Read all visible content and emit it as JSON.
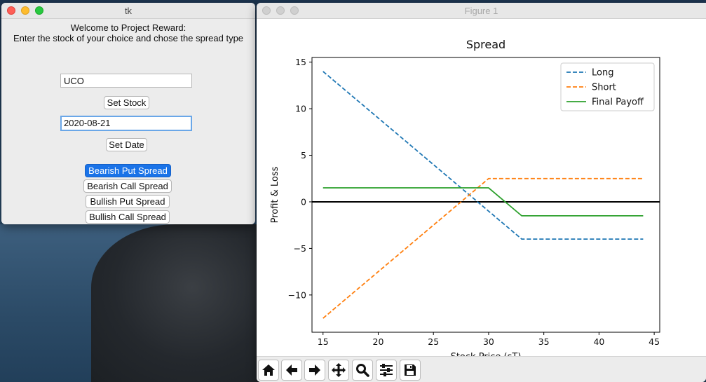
{
  "tk_window": {
    "title": "tk",
    "welcome_line1": "Welcome to Project Reward:",
    "welcome_line2": "Enter the stock of your choice and chose the spread type",
    "stock_value": "UCO",
    "set_stock_label": "Set Stock",
    "date_value": "2020-08-21",
    "set_date_label": "Set Date",
    "buttons": [
      {
        "label": "Bearish Put Spread",
        "selected": true
      },
      {
        "label": "Bearish Call Spread",
        "selected": false
      },
      {
        "label": "Bullish Put Spread",
        "selected": false
      },
      {
        "label": "Bullish Call Spread",
        "selected": false
      }
    ]
  },
  "figure_window": {
    "title": "Figure 1",
    "toolbar": [
      "home-icon",
      "back-arrow-icon",
      "forward-arrow-icon",
      "pan-icon",
      "zoom-icon",
      "configure-subplots-icon",
      "save-icon"
    ]
  },
  "chart_data": {
    "type": "line",
    "title": "Spread",
    "xlabel": "Stock Price (sT)",
    "ylabel": "Profit & Loss",
    "xlim": [
      14,
      45.5
    ],
    "ylim": [
      -14,
      15.5
    ],
    "xticks": [
      15,
      20,
      25,
      30,
      35,
      40,
      45
    ],
    "yticks": [
      15,
      10,
      5,
      0,
      -5,
      -10
    ],
    "hline_y": 0,
    "legend_position": "top-right",
    "series": [
      {
        "name": "Long",
        "style": "dashed",
        "color": "#1f77b4",
        "points": [
          [
            15,
            14
          ],
          [
            33,
            -4
          ],
          [
            44,
            -4
          ]
        ]
      },
      {
        "name": "Short",
        "style": "dashed",
        "color": "#ff7f0e",
        "points": [
          [
            15,
            -12.5
          ],
          [
            30,
            2.5
          ],
          [
            44,
            2.5
          ]
        ]
      },
      {
        "name": "Final Payoff",
        "style": "solid",
        "color": "#2ca02c",
        "points": [
          [
            15,
            1.5
          ],
          [
            30,
            1.5
          ],
          [
            33,
            -1.5
          ],
          [
            44,
            -1.5
          ]
        ]
      }
    ]
  }
}
